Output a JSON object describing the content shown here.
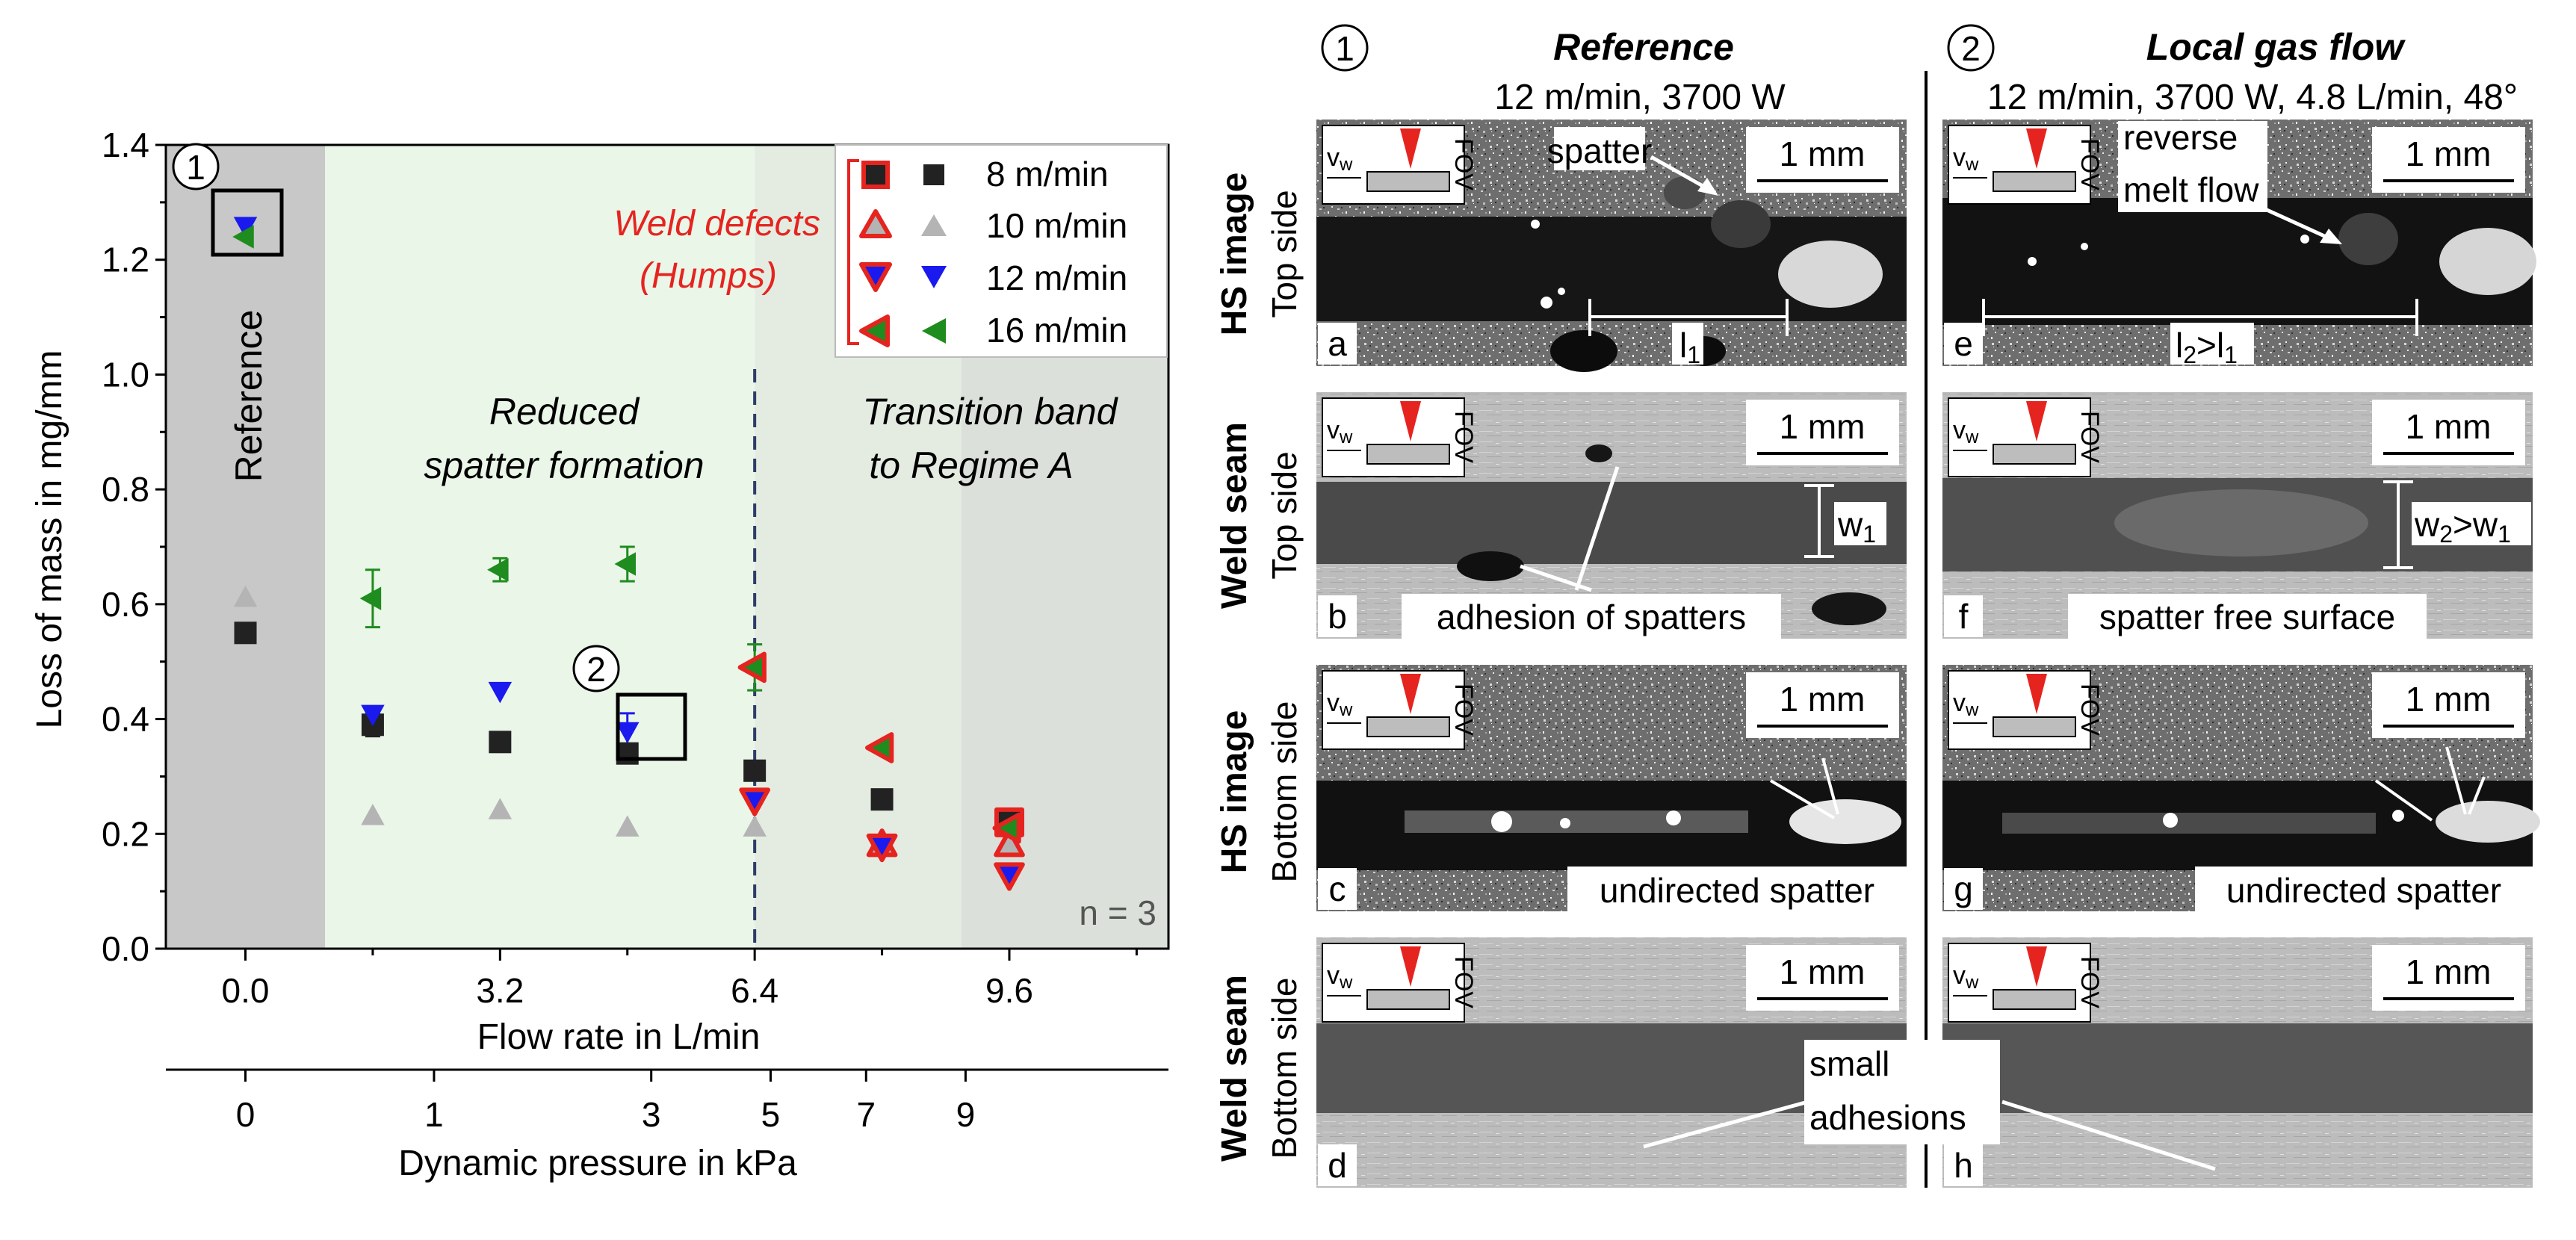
{
  "chart_data": {
    "type": "scatter",
    "ylabel": "Loss of mass in mg/mm",
    "xlabel": "Flow rate in L/min",
    "x2label": "Dynamic pressure in kPa",
    "ylim": [
      0.0,
      1.4
    ],
    "xlim": [
      -1.0,
      11.6
    ],
    "yticks": [
      "0.0",
      "0.2",
      "0.4",
      "0.6",
      "0.8",
      "1.0",
      "1.2",
      "1.4"
    ],
    "xticks": [
      "0.0",
      "3.2",
      "6.4",
      "9.6"
    ],
    "x2ticks": [
      "0",
      "1",
      "3",
      "5",
      "7",
      "9"
    ],
    "sample_note": "n = 3",
    "regions": [
      {
        "name": "Reference",
        "x_from": -1.0,
        "x_to": 1.0,
        "color": "#c8c8c8"
      },
      {
        "name": "Reduced spatter formation",
        "x_from": 1.0,
        "x_to": 6.4,
        "color": "#eaf6e8"
      },
      {
        "name": "Transition band to Regime A",
        "x_from": 6.4,
        "x_to": 11.6,
        "color": "#e4ece2"
      }
    ],
    "region_labels": {
      "reference": "Reference",
      "reduced_line1": "Reduced",
      "reduced_line2": "spatter formation",
      "transition_line1": "Transition band",
      "transition_line2": "to Regime A"
    },
    "defects_label_line1": "Weld defects",
    "defects_label_line2": "(Humps)",
    "callouts": [
      {
        "number": "1",
        "x": 0.0,
        "y": 1.25
      },
      {
        "number": "2",
        "x": 5.2,
        "y": 0.38
      }
    ],
    "transition_x": 6.4,
    "series": [
      {
        "name": "8 m/min",
        "marker": "square",
        "color": "#222222",
        "points": [
          {
            "x": 0.0,
            "y": 0.55,
            "defect": false
          },
          {
            "x": 1.6,
            "y": 0.39,
            "defect": false
          },
          {
            "x": 3.2,
            "y": 0.36,
            "defect": false
          },
          {
            "x": 4.8,
            "y": 0.34,
            "defect": false
          },
          {
            "x": 6.4,
            "y": 0.31,
            "defect": false
          },
          {
            "x": 8.0,
            "y": 0.26,
            "defect": false
          },
          {
            "x": 9.6,
            "y": 0.22,
            "defect": true
          }
        ]
      },
      {
        "name": "10 m/min",
        "marker": "triangle-up",
        "color": "#b4b4b4",
        "points": [
          {
            "x": 0.0,
            "y": 0.61,
            "defect": false
          },
          {
            "x": 1.6,
            "y": 0.23,
            "defect": false
          },
          {
            "x": 3.2,
            "y": 0.24,
            "defect": false
          },
          {
            "x": 4.8,
            "y": 0.21,
            "defect": false
          },
          {
            "x": 6.4,
            "y": 0.21,
            "defect": false
          },
          {
            "x": 8.0,
            "y": 0.18,
            "defect": true
          },
          {
            "x": 9.6,
            "y": 0.18,
            "defect": true
          }
        ]
      },
      {
        "name": "12 m/min",
        "marker": "triangle-down",
        "color": "#1a1aee",
        "points": [
          {
            "x": 0.0,
            "y": 1.26,
            "defect": false
          },
          {
            "x": 1.6,
            "y": 0.41,
            "defect": false
          },
          {
            "x": 3.2,
            "y": 0.45,
            "defect": false
          },
          {
            "x": 4.8,
            "y": 0.38,
            "defect": false
          },
          {
            "x": 6.4,
            "y": 0.26,
            "defect": true
          },
          {
            "x": 8.0,
            "y": 0.18,
            "defect": true
          },
          {
            "x": 9.6,
            "y": 0.13,
            "defect": true
          }
        ]
      },
      {
        "name": "16 m/min",
        "marker": "triangle-left",
        "color": "#1e8c1e",
        "points": [
          {
            "x": 0.0,
            "y": 1.24,
            "defect": false
          },
          {
            "x": 1.6,
            "y": 0.61,
            "defect": false
          },
          {
            "x": 3.2,
            "y": 0.66,
            "defect": false
          },
          {
            "x": 4.8,
            "y": 0.67,
            "defect": false
          },
          {
            "x": 6.4,
            "y": 0.49,
            "defect": true
          },
          {
            "x": 8.0,
            "y": 0.35,
            "defect": true
          },
          {
            "x": 9.6,
            "y": 0.21,
            "defect": true
          }
        ]
      }
    ],
    "error_bars": [
      {
        "x": 1.6,
        "y": 0.61,
        "err": 0.05,
        "color": "#1e8c1e"
      },
      {
        "x": 3.2,
        "y": 0.66,
        "err": 0.02,
        "color": "#1e8c1e"
      },
      {
        "x": 4.8,
        "y": 0.67,
        "err": 0.03,
        "color": "#1e8c1e"
      },
      {
        "x": 6.4,
        "y": 0.49,
        "err": 0.04,
        "color": "#1e8c1e"
      },
      {
        "x": 4.8,
        "y": 0.38,
        "err": 0.03,
        "color": "#1a1aee"
      },
      {
        "x": 1.6,
        "y": 0.39,
        "err": 0.02,
        "color": "#222222"
      }
    ]
  },
  "image_panel": {
    "columns": [
      {
        "number": "1",
        "title": "Reference",
        "subtitle": "12 m/min, 3700 W"
      },
      {
        "number": "2",
        "title": "Local gas flow",
        "subtitle": "12 m/min, 3700 W, 4.8 L/min, 48°"
      }
    ],
    "rows": [
      {
        "label_bold": "HS image",
        "label_plain": "Top side"
      },
      {
        "label_bold": "Weld seam",
        "label_plain": "Top side"
      },
      {
        "label_bold": "HS image",
        "label_plain": "Bottom side"
      },
      {
        "label_bold": "Weld seam",
        "label_plain": "Bottom side"
      }
    ],
    "scale_bar": "1 mm",
    "inset_vw": "v",
    "inset_vw_sub": "w",
    "inset_fov": "FOV",
    "panel_letters": [
      "a",
      "b",
      "c",
      "d",
      "e",
      "f",
      "g",
      "h"
    ],
    "annotations": {
      "spatter": "spatter",
      "reverse_1": "reverse",
      "reverse_2": "melt flow",
      "l1": "l",
      "l1_sub": "1",
      "l2": "l",
      "l2_sub": "2",
      "l2_rel": ">l",
      "l2_rel_sub": "1",
      "w1": "w",
      "w1_sub": "1",
      "w2": "w",
      "w2_sub": "2",
      "w2_rel": ">w",
      "w2_rel_sub": "1",
      "adhesion": "adhesion of spatters",
      "spatter_free": "spatter free surface",
      "undirected_c": "undirected spatter",
      "undirected_g": "undirected spatter",
      "small_1": "small",
      "small_2": "adhesions"
    }
  }
}
